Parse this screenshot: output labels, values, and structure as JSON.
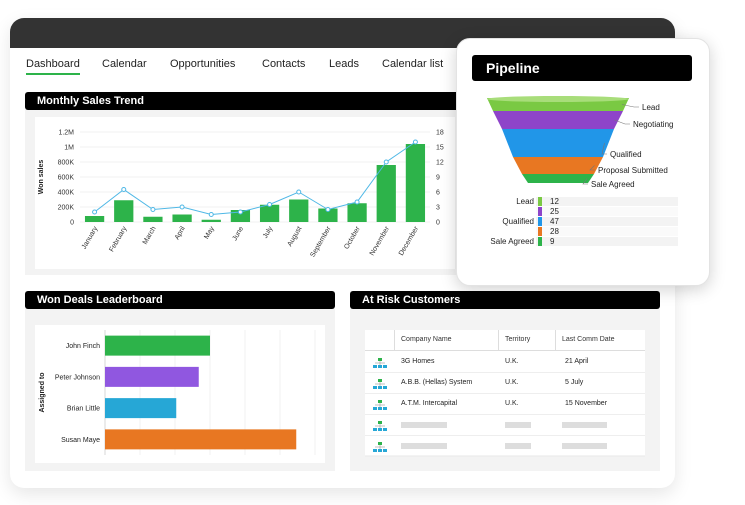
{
  "nav": {
    "tabs": [
      "Dashboard",
      "Calendar",
      "Opportunities",
      "Contacts",
      "Leads",
      "Calendar list"
    ],
    "active": "Dashboard"
  },
  "sales_trend": {
    "title": "Monthly Sales Trend",
    "chart_data": {
      "type": "bar",
      "categories": [
        "January",
        "February",
        "March",
        "April",
        "May",
        "June",
        "July",
        "August",
        "September",
        "October",
        "November",
        "December"
      ],
      "series": [
        {
          "values": [
            80000,
            290000,
            70000,
            100000,
            30000,
            160000,
            230000,
            300000,
            180000,
            250000,
            760000,
            1040000
          ]
        },
        {
          "values": [
            2,
            6.5,
            2.5,
            3,
            1.5,
            2,
            3.5,
            6,
            2.5,
            4,
            12,
            16
          ]
        }
      ],
      "ylabel": "Won sales",
      "ylim": [
        0,
        1200000
      ],
      "y_ticks": [
        "1.2M",
        "1M",
        "800K",
        "600K",
        "400K",
        "200K",
        "0"
      ],
      "y2lim": [
        0,
        18
      ],
      "y2_ticks": [
        "18",
        "15",
        "12",
        "9",
        "6",
        "3",
        "0"
      ],
      "colors": {
        "bar": "#2db34a",
        "line": "#4fb8e6"
      }
    }
  },
  "leaderboard": {
    "title": "Won Deals Leaderboard",
    "chart_data": {
      "type": "bar",
      "orientation": "horizontal",
      "categories": [
        "John Finch",
        "Peter Johnson",
        "Brian Little",
        "Susan Maye"
      ],
      "values": [
        28,
        25,
        19,
        51
      ],
      "xlim": [
        0,
        56
      ],
      "ylabel": "Assigned to",
      "colors": [
        "#2db34a",
        "#9057e0",
        "#26a7d6",
        "#e87722"
      ]
    }
  },
  "at_risk": {
    "title": "At Risk Customers",
    "columns": [
      "Company Name",
      "Territory",
      "Last Comm Date"
    ],
    "rows": [
      [
        "3G Homes",
        "U.K.",
        "21 April"
      ],
      [
        "A.B.B. (Hellas) System",
        "U.K.",
        "5 July"
      ],
      [
        "A.T.M. Intercapital",
        "U.K.",
        "15 November"
      ]
    ],
    "placeholder_rows": 2,
    "row_icon": "org-chart-icon"
  },
  "pipeline": {
    "title": "Pipeline",
    "chart_data": {
      "type": "funnel",
      "stages": [
        "Lead",
        "Negotiating",
        "Qualified",
        "Proposal Submitted",
        "Sale Agreed"
      ],
      "colors": [
        "#7ac943",
        "#8e44c9",
        "#2196e8",
        "#e87722",
        "#2db34a"
      ],
      "table": [
        {
          "label": "Lead",
          "value": "12"
        },
        {
          "label": "",
          "value": "25"
        },
        {
          "label": "Qualified",
          "value": "47"
        },
        {
          "label": "",
          "value": "28"
        },
        {
          "label": "Sale Agreed",
          "value": "9"
        }
      ]
    }
  }
}
